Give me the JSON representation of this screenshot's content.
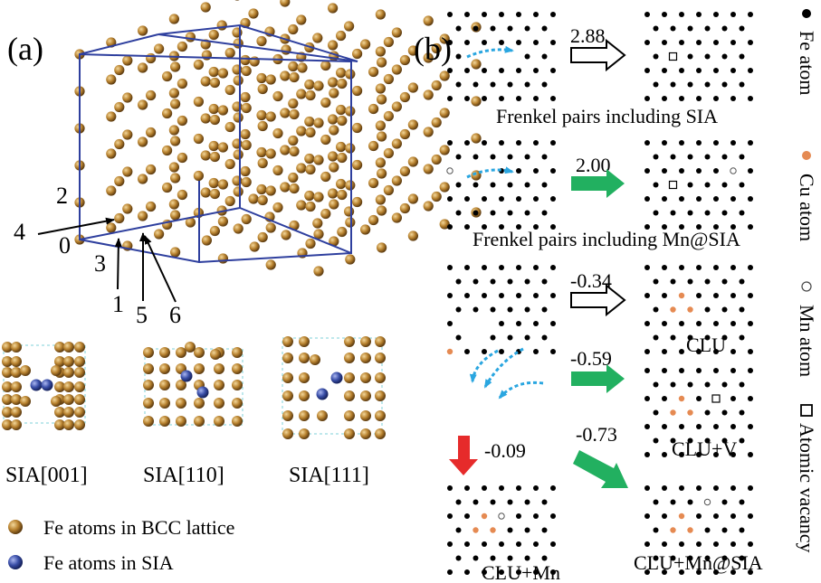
{
  "panel_a": {
    "label": "(a)",
    "site_labels": [
      "0",
      "1",
      "2",
      "3",
      "4",
      "5",
      "6"
    ],
    "sia_labels": [
      "SIA[001]",
      "SIA[110]",
      "SIA[111]"
    ],
    "legend": {
      "bcc": "Fe atoms in BCC lattice",
      "sia": "Fe atoms in SIA"
    }
  },
  "panel_b": {
    "label": "(b)",
    "energies": {
      "fp_sia": "2.88",
      "fp_mn": "2.00",
      "clu": "-0.34",
      "clu_v": "-0.59",
      "clu_mn_sia": "-0.73",
      "clu_mn": "-0.09"
    },
    "captions": {
      "fp_sia": "Frenkel pairs including SIA",
      "fp_mn": "Frenkel pairs including Mn@SIA",
      "clu": "CLU",
      "clu_v": "CLU+V",
      "clu_mn": "CLU+Mn",
      "clu_mn_sia": "CLU+Mn@SIA"
    },
    "legend": {
      "fe": "Fe atom",
      "cu": "Cu atom",
      "mn": "Mn atom",
      "vac": "Atomic vacancy"
    }
  },
  "colors": {
    "fe_atom": "#a8742b",
    "sia_atom": "#3a4fa8",
    "cell_edge": "#2e3f9e",
    "cu_atom": "#e58a52",
    "green_arrow": "#22b060",
    "red_arrow": "#e62b2b",
    "dotted_arrow": "#2aa6e0"
  }
}
